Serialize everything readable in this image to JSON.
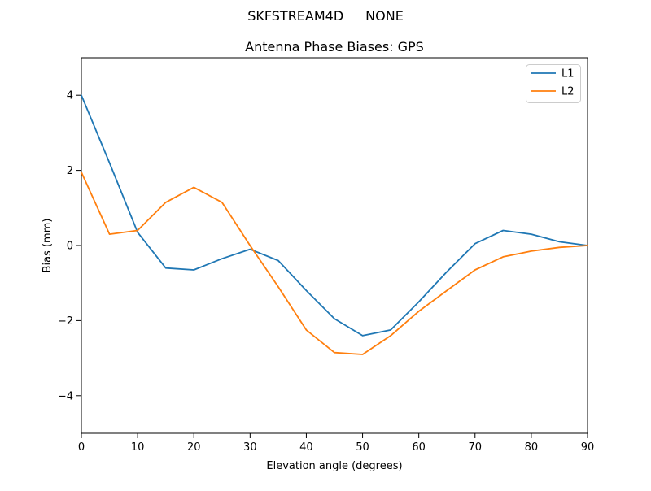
{
  "figure": {
    "suptitle_left": "SKFSTREAM4D",
    "suptitle_right": "NONE"
  },
  "chart_data": {
    "type": "line",
    "suptitle": "SKFSTREAM4D      NONE",
    "title": "Antenna Phase Biases: GPS",
    "xlabel": "Elevation angle (degrees)",
    "ylabel": "Bias (mm)",
    "xlim": [
      0,
      90
    ],
    "ylim": [
      -5,
      5
    ],
    "xticks": [
      0,
      10,
      20,
      30,
      40,
      50,
      60,
      70,
      80,
      90
    ],
    "yticks": [
      -4,
      -2,
      0,
      2,
      4
    ],
    "yticklabels": [
      "−4",
      "−2",
      "0",
      "2",
      "4"
    ],
    "grid": false,
    "legend_position": "upper right",
    "x": [
      0,
      5,
      10,
      15,
      20,
      25,
      30,
      35,
      40,
      45,
      50,
      55,
      60,
      65,
      70,
      75,
      80,
      85,
      90
    ],
    "series": [
      {
        "name": "L1",
        "color": "#1f77b4",
        "values": [
          4.0,
          2.2,
          0.35,
          -0.6,
          -0.65,
          -0.35,
          -0.1,
          -0.4,
          -1.2,
          -1.95,
          -2.4,
          -2.25,
          -1.5,
          -0.7,
          0.05,
          0.4,
          0.3,
          0.1,
          0.0
        ]
      },
      {
        "name": "L2",
        "color": "#ff7f0e",
        "values": [
          1.95,
          0.3,
          0.4,
          1.15,
          1.55,
          1.15,
          0.0,
          -1.1,
          -2.25,
          -2.85,
          -2.9,
          -2.4,
          -1.75,
          -1.2,
          -0.65,
          -0.3,
          -0.15,
          -0.05,
          0.0
        ]
      }
    ]
  }
}
